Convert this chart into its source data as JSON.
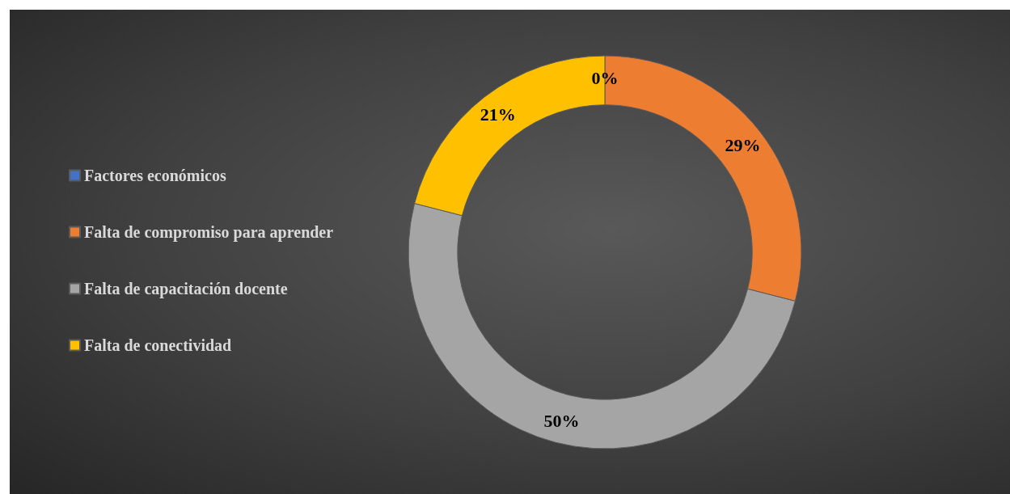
{
  "chart_data": {
    "type": "donut",
    "categories": [
      "Factores económicos",
      "Falta de compromiso para aprender",
      "Falta de capacitación docente",
      "Falta de conectividad"
    ],
    "values": [
      0,
      29,
      50,
      21
    ],
    "value_labels": [
      "0%",
      "29%",
      "50%",
      "21%"
    ],
    "colors": [
      "#4472c4",
      "#ed7d31",
      "#a5a5a5",
      "#ffc000"
    ],
    "legend": "left"
  }
}
